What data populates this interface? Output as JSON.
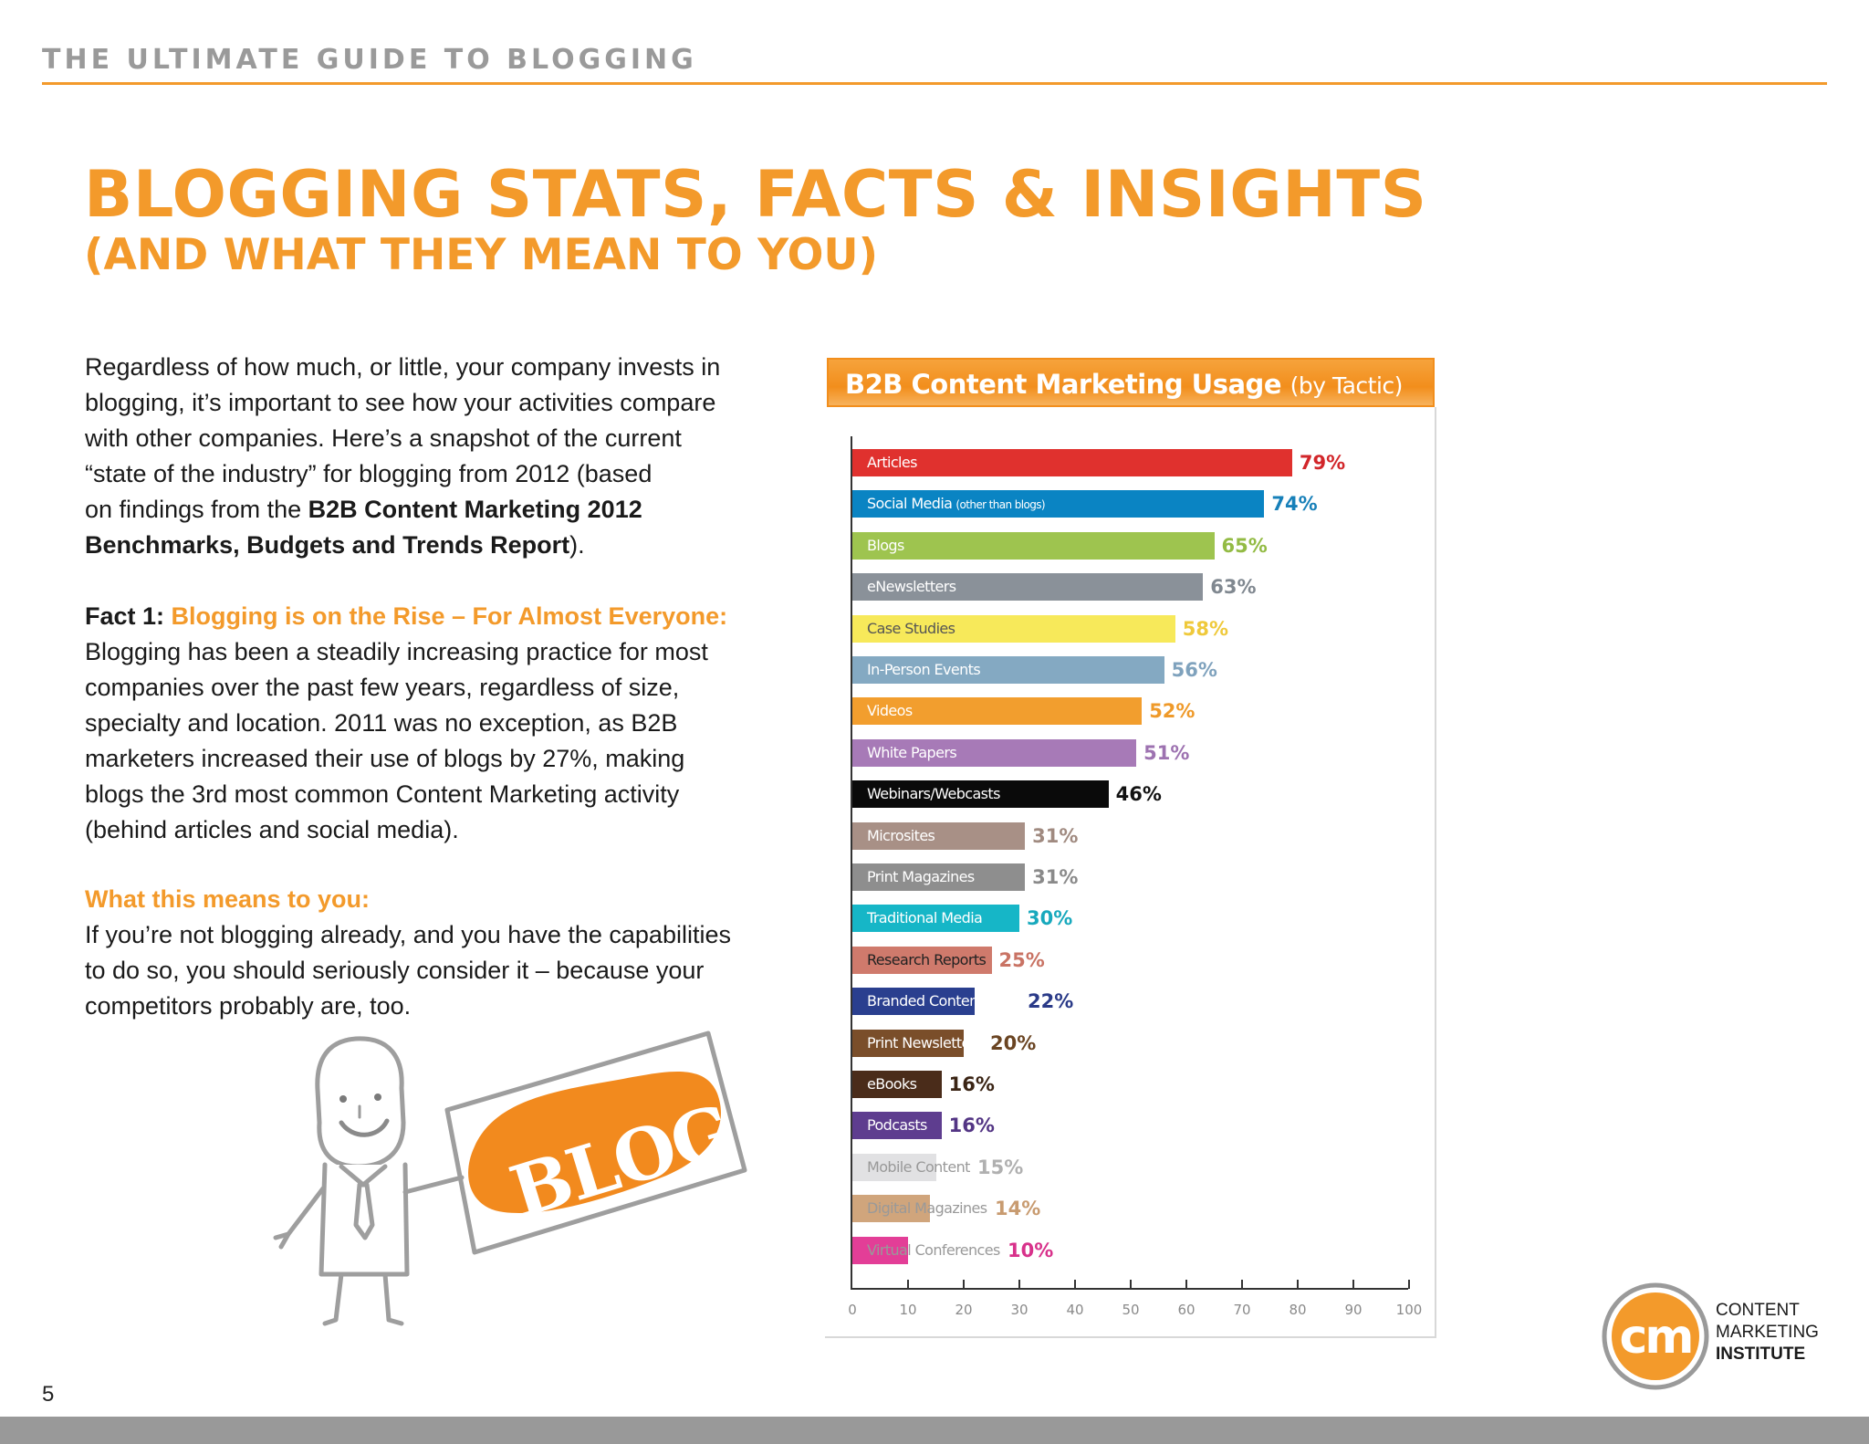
{
  "header": {
    "running_title": "THE ULTIMATE GUIDE TO BLOGGING"
  },
  "title": {
    "line1": "BLOGGING STATS, FACTS & INSIGHTS",
    "line2": "(AND WHAT THEY MEAN TO YOU)"
  },
  "intro": {
    "lines": [
      "Regardless of how much, or little, your company invests in",
      "blogging, it’s important to see how your activities compare",
      "with other companies. Here’s a snapshot of the current",
      "“state of the industry” for blogging from 2012 (based"
    ],
    "line5_prefix": "on findings from the ",
    "report_line1": "B2B Content Marketing 2012",
    "report_line2": "Benchmarks, Budgets and Trends Report",
    "line6_suffix": ")."
  },
  "fact1": {
    "label": "Fact 1: ",
    "heading": "Blogging is on the Rise – For Almost Everyone:",
    "lines": [
      "Blogging has been a steadily increasing practice for most",
      "companies over the past few years, regardless of size,",
      "specialty and location. 2011 was no exception, as B2B",
      "marketers increased their use of blogs by 27%, making",
      "blogs the 3rd most common Content Marketing activity",
      "(behind articles and social media)."
    ]
  },
  "meaning": {
    "heading": "What this means to you:",
    "lines": [
      "If you’re not blogging already, and you have the capabilities",
      "to do so, you should seriously consider it – because your",
      "competitors probably are, too."
    ]
  },
  "illustration": {
    "sign_text": "BLOG!"
  },
  "chart_data": {
    "type": "bar",
    "orientation": "horizontal",
    "title": "B2B Content Marketing Usage",
    "subtitle": "(by Tactic)",
    "xlim": [
      0,
      100
    ],
    "xticks": [
      0,
      10,
      20,
      30,
      40,
      50,
      60,
      70,
      80,
      90,
      100
    ],
    "grid": false,
    "bars": [
      {
        "label": "Articles",
        "value": 79,
        "value_label": "79%",
        "color": "#e0312e",
        "value_color": "#d2262a",
        "label_color": "#ffffff"
      },
      {
        "label": "Social Media",
        "label_sub": "(other than blogs)",
        "value": 74,
        "value_label": "74%",
        "color": "#0a84c3",
        "value_color": "#1780b9",
        "label_color": "#ffffff"
      },
      {
        "label": "Blogs",
        "value": 65,
        "value_label": "65%",
        "color": "#9ec44f",
        "value_color": "#93bb44",
        "label_color": "#ffffff"
      },
      {
        "label": "eNewsletters",
        "value": 63,
        "value_label": "63%",
        "color": "#8a9199",
        "value_color": "#808890",
        "label_color": "#ffffff"
      },
      {
        "label": "Case Studies",
        "value": 58,
        "value_label": "58%",
        "color": "#f7e95a",
        "value_color": "#efc93b",
        "label_color": "#555555"
      },
      {
        "label": "In-Person Events",
        "value": 56,
        "value_label": "56%",
        "color": "#84a9c2",
        "value_color": "#7fa2bd",
        "label_color": "#ffffff"
      },
      {
        "label": "Videos",
        "value": 52,
        "value_label": "52%",
        "color": "#f29e2e",
        "value_color": "#ef9a2a",
        "label_color": "#ffffff"
      },
      {
        "label": "White Papers",
        "value": 51,
        "value_label": "51%",
        "color": "#a77ab7",
        "value_color": "#9d72b0",
        "label_color": "#ffffff"
      },
      {
        "label": "Webinars/Webcasts",
        "value": 46,
        "value_label": "46%",
        "color": "#0a0a0a",
        "value_color": "#111111",
        "label_color": "#ffffff"
      },
      {
        "label": "Microsites",
        "value": 31,
        "value_label": "31%",
        "color": "#a89086",
        "value_color": "#a08a80",
        "label_color": "#ffffff"
      },
      {
        "label": "Print Magazines",
        "value": 31,
        "value_label": "31%",
        "color": "#8e8e8e",
        "value_color": "#8a8a8a",
        "label_color": "#ffffff"
      },
      {
        "label": "Traditional Media",
        "value": 30,
        "value_label": "30%",
        "color": "#16b6c7",
        "value_color": "#18a9bd",
        "label_color": "#ffffff"
      },
      {
        "label": "Research Reports",
        "value": 25,
        "value_label": "25%",
        "color": "#cf7a6c",
        "value_color": "#c97364",
        "label_color": "#222222"
      },
      {
        "label": "Branded Content Tools",
        "value": 22,
        "value_label": "22%",
        "color": "#2a3f8f",
        "value_color": "#2a3a88",
        "label_color": "#ffffff"
      },
      {
        "label": "Print Newsletters",
        "value": 20,
        "value_label": "20%",
        "color": "#7a4e2a",
        "value_color": "#6a4422",
        "label_color": "#ffffff"
      },
      {
        "label": "eBooks",
        "value": 16,
        "value_label": "16%",
        "color": "#4a2c1a",
        "value_color": "#3a2414",
        "label_color": "#ffffff"
      },
      {
        "label": "Podcasts",
        "value": 16,
        "value_label": "16%",
        "color": "#5e3d8f",
        "value_color": "#533584",
        "label_color": "#ffffff"
      },
      {
        "label": "Mobile Content",
        "value": 15,
        "value_label": "15%",
        "color": "#e1e1e3",
        "value_color": "#b0b0b0",
        "label_color": "#999999"
      },
      {
        "label": "Digital Magazines",
        "value": 14,
        "value_label": "14%",
        "color": "#d0a57c",
        "value_color": "#c89b70",
        "label_color": "#999999"
      },
      {
        "label": "Virtual Conferences",
        "value": 10,
        "value_label": "10%",
        "color": "#e33e97",
        "value_color": "#d8328b",
        "label_color": "#999999"
      }
    ]
  },
  "logo": {
    "mark": "cm",
    "line1": "CONTENT",
    "line2": "MARKETING",
    "line3": "INSTITUTE"
  },
  "footer": {
    "page_number": "5"
  }
}
